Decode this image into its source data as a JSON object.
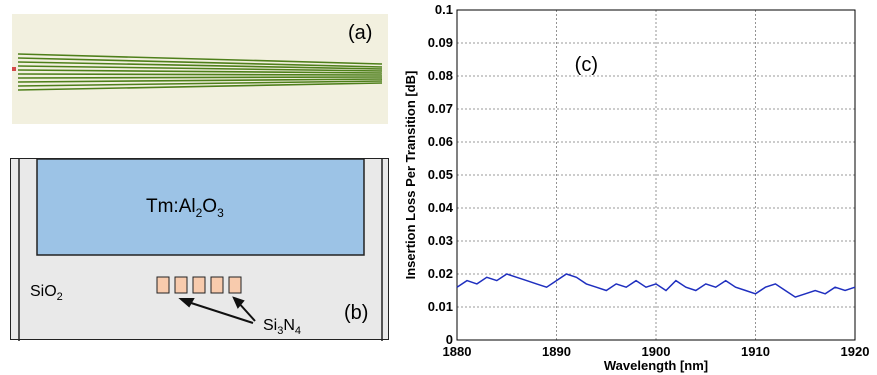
{
  "panel_a": {
    "label": "(a)"
  },
  "panel_b": {
    "label": "(b)",
    "cladding_label": {
      "main": "SiO",
      "sub": "2"
    },
    "core_label": {
      "prefix": "Tm:Al",
      "sub1": "2",
      "mid": "O",
      "sub2": "3"
    },
    "waveguide_label": {
      "p1": "Si",
      "s1": "3",
      "p2": "N",
      "s2": "4"
    },
    "colors": {
      "core": "#9cc3e6",
      "cladding": "#e9e9e9",
      "waveguide": "#f8cbad"
    }
  },
  "chart_data": {
    "type": "line",
    "panel_label": "(c)",
    "title": "",
    "xlabel": "Wavelength [nm]",
    "ylabel": "Insertion Loss Per Transition [dB]",
    "xlim": [
      1880,
      1920
    ],
    "ylim": [
      0,
      0.1
    ],
    "xticks": [
      "1880",
      "1890",
      "1900",
      "1910",
      "1920"
    ],
    "yticks": [
      "0",
      "0.01",
      "0.02",
      "0.03",
      "0.04",
      "0.05",
      "0.06",
      "0.07",
      "0.08",
      "0.09",
      "0.1"
    ],
    "grid": true,
    "line_color": "#1f2fbf",
    "series": [
      {
        "x": [
          1880,
          1881,
          1882,
          1883,
          1884,
          1885,
          1886,
          1887,
          1888,
          1889,
          1890,
          1891,
          1892,
          1893,
          1894,
          1895,
          1896,
          1897,
          1898,
          1899,
          1900,
          1901,
          1902,
          1903,
          1904,
          1905,
          1906,
          1907,
          1908,
          1909,
          1910,
          1911,
          1912,
          1913,
          1914,
          1915,
          1916,
          1917,
          1918,
          1919,
          1920
        ],
        "y": [
          0.016,
          0.018,
          0.017,
          0.019,
          0.018,
          0.02,
          0.019,
          0.018,
          0.017,
          0.016,
          0.018,
          0.02,
          0.019,
          0.017,
          0.016,
          0.015,
          0.017,
          0.016,
          0.018,
          0.016,
          0.017,
          0.015,
          0.018,
          0.016,
          0.015,
          0.017,
          0.016,
          0.018,
          0.016,
          0.015,
          0.014,
          0.016,
          0.017,
          0.015,
          0.013,
          0.014,
          0.015,
          0.014,
          0.016,
          0.015,
          0.016
        ]
      }
    ]
  }
}
